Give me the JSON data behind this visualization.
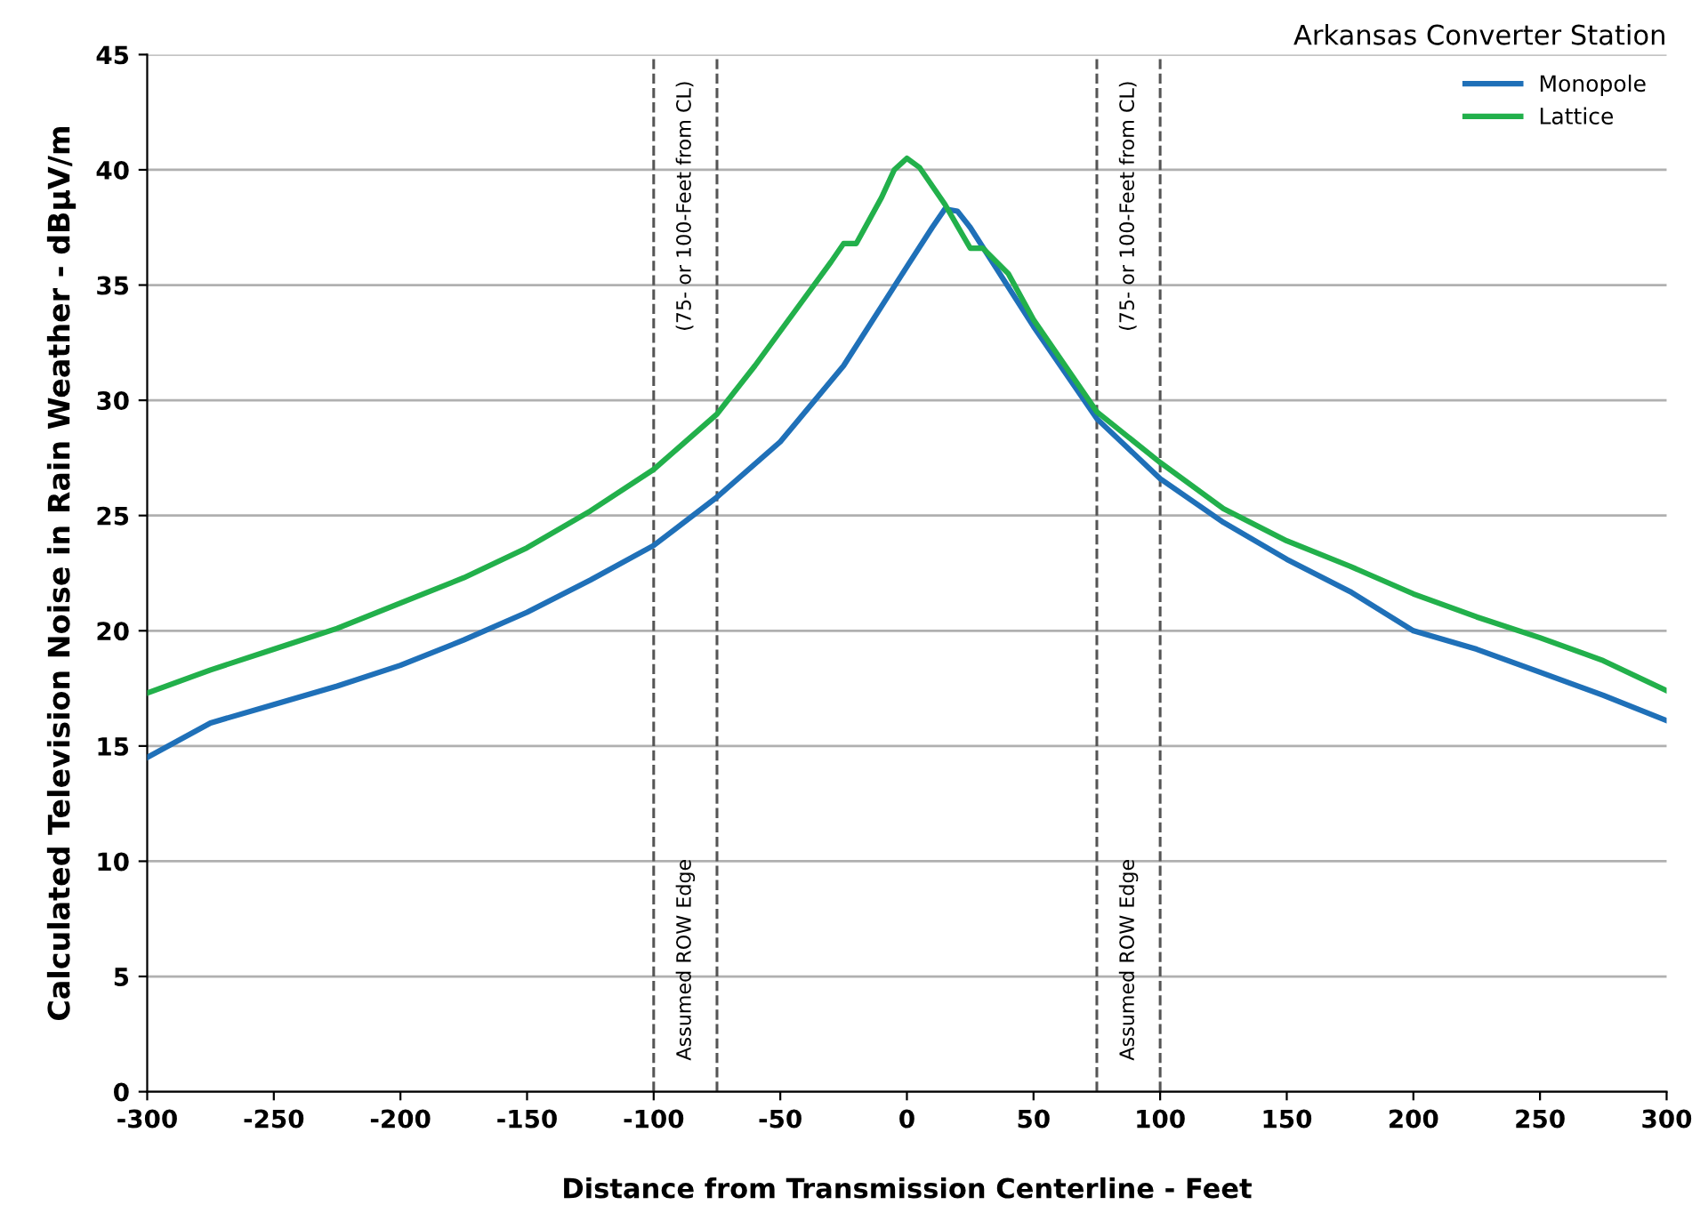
{
  "chart_data": {
    "type": "line",
    "title": "Arkansas Converter Station",
    "xlabel": "Distance from Transmission Centerline - Feet",
    "ylabel": "Calculated Television Noise in Rain Weather - dBµV/m",
    "xlim": [
      -300,
      300
    ],
    "xticks": [
      -300,
      -250,
      -200,
      -150,
      -100,
      -50,
      0,
      50,
      100,
      150,
      200,
      250,
      300
    ],
    "ylim": [
      0,
      45
    ],
    "yticks": [
      0,
      5,
      10,
      15,
      20,
      25,
      30,
      35,
      40,
      45
    ],
    "grid": "y",
    "legend": "top right",
    "marker": "none",
    "line_style": "solid",
    "series": [
      {
        "name": "Monopole",
        "color": "#1f70b8",
        "x": [
          -300,
          -275,
          -250,
          -225,
          -200,
          -175,
          -150,
          -125,
          -100,
          -75,
          -50,
          -25,
          0,
          10,
          15,
          20,
          25,
          50,
          75,
          100,
          125,
          150,
          175,
          200,
          225,
          250,
          275,
          300
        ],
        "values": [
          14.5,
          16.0,
          16.8,
          17.6,
          18.5,
          19.6,
          20.8,
          22.2,
          23.7,
          25.8,
          28.2,
          31.5,
          35.8,
          37.5,
          38.3,
          38.2,
          37.5,
          33.2,
          29.2,
          26.6,
          24.7,
          23.1,
          21.7,
          20.0,
          19.2,
          18.2,
          17.2,
          16.1
        ]
      },
      {
        "name": "Lattice",
        "color": "#22b04b",
        "x": [
          -300,
          -275,
          -250,
          -225,
          -200,
          -175,
          -150,
          -125,
          -100,
          -75,
          -60,
          -40,
          -30,
          -25,
          -20,
          -10,
          -5,
          0,
          5,
          15,
          25,
          30,
          40,
          50,
          75,
          100,
          125,
          150,
          175,
          200,
          225,
          250,
          275,
          300
        ],
        "values": [
          17.3,
          18.3,
          19.2,
          20.1,
          21.2,
          22.3,
          23.6,
          25.2,
          27.0,
          29.4,
          31.5,
          34.5,
          36.0,
          36.8,
          36.8,
          38.8,
          40.0,
          40.5,
          40.1,
          38.5,
          36.6,
          36.6,
          35.5,
          33.5,
          29.5,
          27.3,
          25.3,
          23.9,
          22.8,
          21.6,
          20.6,
          19.7,
          18.7,
          17.4
        ]
      }
    ],
    "ref_lines": [
      {
        "axis": "x",
        "value": -100,
        "color": "#555555",
        "line_style": "dashed"
      },
      {
        "axis": "x",
        "value": -75,
        "color": "#555555",
        "line_style": "dashed"
      },
      {
        "axis": "x",
        "value": 75,
        "color": "#555555",
        "line_style": "dashed"
      },
      {
        "axis": "x",
        "value": 100,
        "color": "#555555",
        "line_style": "dashed"
      }
    ],
    "annotations": [
      "Assumed ROW Edge",
      "(75- or 100-Feet from CL)",
      "Assumed ROW Edge",
      "(75- or 100-Feet from CL)"
    ]
  }
}
